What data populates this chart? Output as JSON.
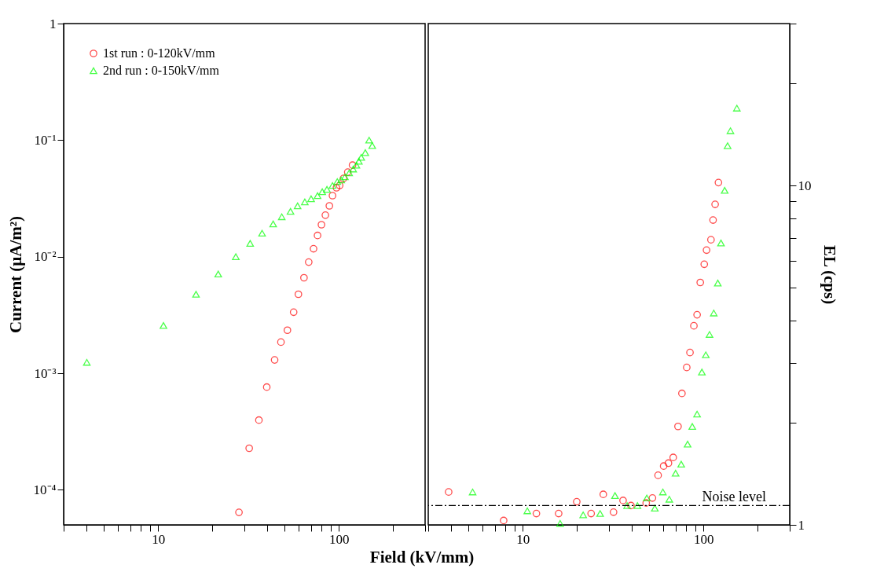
{
  "chart_data": [
    {
      "type": "scatter",
      "ylabel": "Current  (μA/m²)",
      "xlabel": "Field (kV/mm)",
      "log": "xy",
      "legend": "top left",
      "grid": false,
      "xlim": [
        3,
        300
      ],
      "xticks": [
        {
          "value": 3,
          "label": null
        },
        {
          "value": 4,
          "label": null
        },
        {
          "value": 5,
          "label": null
        },
        {
          "value": 6,
          "label": null
        },
        {
          "value": 7,
          "label": null
        },
        {
          "value": 8,
          "label": null
        },
        {
          "value": 9,
          "label": null
        },
        10,
        {
          "value": 20,
          "label": null
        },
        {
          "value": 30,
          "label": null
        },
        {
          "value": 40,
          "label": null
        },
        {
          "value": 50,
          "label": null
        },
        {
          "value": 60,
          "label": null
        },
        {
          "value": 70,
          "label": null
        },
        {
          "value": 80,
          "label": null
        },
        {
          "value": 90,
          "label": null
        },
        100,
        {
          "value": 200,
          "label": null
        },
        {
          "value": 300,
          "label": null
        }
      ],
      "ylim": [
        5e-05,
        1
      ],
      "yticks": [
        {
          "value": 0.0001,
          "label": "10⁻⁴"
        },
        {
          "value": 0.001,
          "label": "10⁻³"
        },
        {
          "value": 0.01,
          "label": "10⁻²"
        },
        {
          "value": 0.1,
          "label": "10⁻¹"
        },
        1
      ],
      "series": [
        {
          "name": "1st run : 0-120kV/mm",
          "color": "#ff0000",
          "marker": "circle",
          "x": [
            28.0,
            31.9,
            36.1,
            39.9,
            44.1,
            47.8,
            51.9,
            56.2,
            59.7,
            64.1,
            68.1,
            72.4,
            76.2,
            80.1,
            84.2,
            88.6,
            92.2,
            97.0,
            101,
            106,
            112,
            119
          ],
          "values": [
            6.4e-05,
            0.000227,
            0.000396,
            0.00076,
            0.0013,
            0.00185,
            0.00234,
            0.00334,
            0.00476,
            0.00659,
            0.00898,
            0.0117,
            0.0152,
            0.0188,
            0.0227,
            0.0273,
            0.0334,
            0.039,
            0.0408,
            0.0469,
            0.0531,
            0.061
          ]
        },
        {
          "name": "2nd run : 0-150kV/mm",
          "color": "#00ff00",
          "marker": "triangle",
          "x": [
            4.03,
            10.7,
            16.2,
            21.5,
            26.9,
            32.3,
            37.6,
            43.3,
            48.3,
            54.0,
            59.1,
            64.8,
            70.2,
            76.2,
            80.9,
            85.9,
            92.2,
            98.0,
            103,
            108,
            114,
            120,
            125,
            129,
            133,
            140,
            147,
            153
          ],
          "values": [
            0.00124,
            0.00257,
            0.00476,
            0.0071,
            0.01,
            0.013,
            0.0159,
            0.0191,
            0.022,
            0.0245,
            0.0273,
            0.0295,
            0.0314,
            0.0334,
            0.0361,
            0.0378,
            0.0408,
            0.0441,
            0.0455,
            0.0484,
            0.0523,
            0.0565,
            0.061,
            0.0659,
            0.0711,
            0.0781,
            0.1,
            0.0898
          ]
        }
      ]
    },
    {
      "type": "scatter",
      "ylabel": "EL (cps)",
      "log": "xy",
      "grid": false,
      "xlim": [
        3,
        300
      ],
      "xticks": [
        {
          "value": 3,
          "label": null
        },
        {
          "value": 4,
          "label": null
        },
        {
          "value": 5,
          "label": null
        },
        {
          "value": 6,
          "label": null
        },
        {
          "value": 7,
          "label": null
        },
        {
          "value": 8,
          "label": null
        },
        {
          "value": 9,
          "label": null
        },
        10,
        {
          "value": 20,
          "label": null
        },
        {
          "value": 30,
          "label": null
        },
        {
          "value": 40,
          "label": null
        },
        {
          "value": 50,
          "label": null
        },
        {
          "value": 60,
          "label": null
        },
        {
          "value": 70,
          "label": null
        },
        {
          "value": 80,
          "label": null
        },
        {
          "value": 90,
          "label": null
        },
        100,
        {
          "value": 200,
          "label": null
        },
        {
          "value": 300,
          "label": null
        }
      ],
      "ylim": [
        1,
        30
      ],
      "yticks": [
        1,
        {
          "value": 2,
          "label": null
        },
        {
          "value": 3,
          "label": null
        },
        {
          "value": 4,
          "label": null
        },
        {
          "value": 5,
          "label": null
        },
        {
          "value": 6,
          "label": null
        },
        {
          "value": 7,
          "label": null
        },
        {
          "value": 8,
          "label": null
        },
        {
          "value": 9,
          "label": null
        },
        10,
        {
          "value": 20,
          "label": null
        },
        {
          "value": 30,
          "label": null
        }
      ],
      "ref_lines": [
        {
          "axis": "y",
          "value": 1.14,
          "label": "Noise level",
          "line_style": "dashed",
          "color": "#000000"
        }
      ],
      "series": [
        {
          "name": "1st run : 0-120kV/mm",
          "color": "#ff0000",
          "marker": "circle",
          "x": [
            3.89,
            7.84,
            11.9,
            15.8,
            19.9,
            23.9,
            27.9,
            31.8,
            35.9,
            39.7,
            48.2,
            52.2,
            56.1,
            60.2,
            64.0,
            68.0,
            72.3,
            76.0,
            80.8,
            84.2,
            88.5,
            92.2,
            96.0,
            101,
            104,
            110,
            113,
            116,
            121
          ],
          "values": [
            1.25,
            1.03,
            1.08,
            1.08,
            1.17,
            1.08,
            1.23,
            1.09,
            1.18,
            1.14,
            1.16,
            1.2,
            1.4,
            1.49,
            1.52,
            1.58,
            1.95,
            2.44,
            2.91,
            3.22,
            3.86,
            4.16,
            5.18,
            5.86,
            6.45,
            6.92,
            7.91,
            8.8,
            10.2
          ]
        },
        {
          "name": "2nd run : 0-150kV/mm",
          "color": "#00ff00",
          "marker": "triangle",
          "x": [
            5.28,
            10.6,
            16.1,
            21.6,
            26.8,
            32.4,
            37.8,
            43.1,
            48.6,
            53.8,
            59.6,
            64.7,
            70.1,
            75.3,
            81.7,
            86.7,
            92.2,
            98.0,
            103,
            108,
            114,
            120,
            125,
            131,
            136,
            141,
            153
          ],
          "values": [
            1.25,
            1.1,
            1.01,
            1.07,
            1.08,
            1.22,
            1.14,
            1.14,
            1.2,
            1.12,
            1.25,
            1.19,
            1.42,
            1.51,
            1.73,
            1.95,
            2.12,
            2.82,
            3.17,
            3.64,
            4.21,
            5.16,
            6.77,
            9.68,
            13.1,
            14.5,
            16.9
          ]
        }
      ]
    }
  ]
}
